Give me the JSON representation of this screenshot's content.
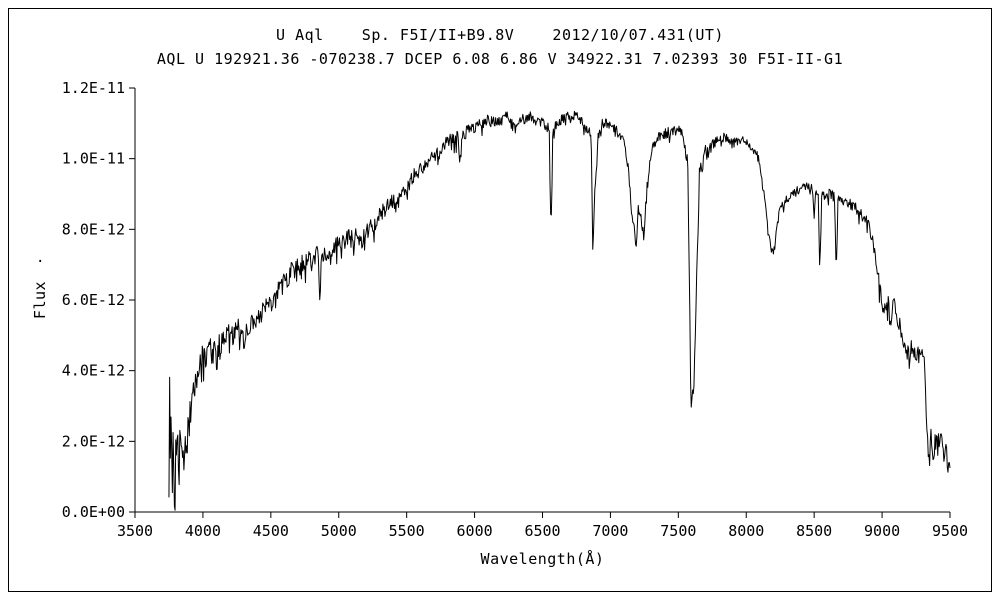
{
  "chart_data": {
    "type": "line",
    "title": "U Aql    Sp. F5I/II+B9.8V    2012/10/07.431(UT)",
    "subtitle": "AQL U 192921.36 -070238.7 DCEP 6.08 6.86 V 34922.31 7.02393 30 F5I-II-G1",
    "xlabel": "Wavelength(Å)",
    "ylabel": "Flux",
    "ylabel_dot": ".",
    "x_unit": "Å",
    "xlim": [
      3500,
      9500
    ],
    "ylim": [
      0,
      1.2e-11
    ],
    "grid": false,
    "legend": "none",
    "line_color": "#000000",
    "background_color": "#ffffff",
    "x_tick_values": [
      3500,
      4000,
      4500,
      5000,
      5500,
      6000,
      6500,
      7000,
      7500,
      8000,
      8500,
      9000,
      9500
    ],
    "x_tick_labels": [
      "3500",
      "4000",
      "4500",
      "5000",
      "5500",
      "6000",
      "6500",
      "7000",
      "7500",
      "8000",
      "8500",
      "9000",
      "9500"
    ],
    "y_tick_values_e12": [
      0,
      2,
      4,
      6,
      8,
      10,
      12
    ],
    "y_tick_labels": [
      "0.0E+00",
      "2.0E-12",
      "4.0E-12",
      "6.0E-12",
      "8.0E-12",
      "1.0E-11",
      "1.2E-11"
    ],
    "flux_scale": "1E-12",
    "series": [
      {
        "name": "spectrum",
        "points_wavelength_flux_e12": [
          [
            3750,
            1.2
          ],
          [
            3754,
            3.7
          ],
          [
            3759,
            0.8
          ],
          [
            3766,
            2.6
          ],
          [
            3773,
            1.0
          ],
          [
            3781,
            2.2
          ],
          [
            3789,
            0.6
          ],
          [
            3797,
            1.9
          ],
          [
            3806,
            1.3
          ],
          [
            3815,
            2.4
          ],
          [
            3824,
            1.1
          ],
          [
            3833,
            2.0
          ],
          [
            3843,
            1.5
          ],
          [
            3853,
            2.2
          ],
          [
            3863,
            1.6
          ],
          [
            3873,
            2.1
          ],
          [
            3883,
            1.8
          ],
          [
            3893,
            2.3
          ],
          [
            3903,
            2.6
          ],
          [
            3913,
            3.0
          ],
          [
            3925,
            3.5
          ],
          [
            3933,
            3.0
          ],
          [
            3941,
            3.8
          ],
          [
            3960,
            4.2
          ],
          [
            3968,
            3.7
          ],
          [
            3976,
            4.3
          ],
          [
            4000,
            4.5
          ],
          [
            4025,
            4.4
          ],
          [
            4050,
            4.6
          ],
          [
            4075,
            4.5
          ],
          [
            4090,
            4.5
          ],
          [
            4101,
            4.0
          ],
          [
            4112,
            4.7
          ],
          [
            4140,
            4.8
          ],
          [
            4170,
            4.9
          ],
          [
            4200,
            5.1
          ],
          [
            4230,
            5.0
          ],
          [
            4260,
            5.2
          ],
          [
            4285,
            5.1
          ],
          [
            4308,
            4.8
          ],
          [
            4320,
            5.2
          ],
          [
            4330,
            5.3
          ],
          [
            4340,
            4.9
          ],
          [
            4352,
            5.4
          ],
          [
            4390,
            5.5
          ],
          [
            4430,
            5.6
          ],
          [
            4470,
            5.8
          ],
          [
            4510,
            6.0
          ],
          [
            4550,
            6.3
          ],
          [
            4600,
            6.5
          ],
          [
            4650,
            6.8
          ],
          [
            4700,
            6.9
          ],
          [
            4750,
            7.1
          ],
          [
            4800,
            7.2
          ],
          [
            4830,
            7.3
          ],
          [
            4850,
            7.25
          ],
          [
            4861,
            5.9
          ],
          [
            4872,
            7.3
          ],
          [
            4920,
            7.4
          ],
          [
            4960,
            7.5
          ],
          [
            5000,
            7.6
          ],
          [
            5050,
            7.7
          ],
          [
            5100,
            7.8
          ],
          [
            5140,
            7.9
          ],
          [
            5160,
            7.7
          ],
          [
            5172,
            7.5
          ],
          [
            5185,
            7.9
          ],
          [
            5220,
            8.0
          ],
          [
            5260,
            8.2
          ],
          [
            5300,
            8.4
          ],
          [
            5350,
            8.6
          ],
          [
            5400,
            8.8
          ],
          [
            5450,
            9.0
          ],
          [
            5500,
            9.2
          ],
          [
            5550,
            9.5
          ],
          [
            5600,
            9.7
          ],
          [
            5650,
            9.9
          ],
          [
            5700,
            10.1
          ],
          [
            5750,
            10.3
          ],
          [
            5800,
            10.5
          ],
          [
            5840,
            10.6
          ],
          [
            5878,
            10.6
          ],
          [
            5890,
            10.0
          ],
          [
            5904,
            10.65
          ],
          [
            5960,
            10.8
          ],
          [
            6000,
            10.9
          ],
          [
            6050,
            11.0
          ],
          [
            6100,
            11.1
          ],
          [
            6150,
            11.0
          ],
          [
            6200,
            11.1
          ],
          [
            6250,
            11.2
          ],
          [
            6280,
            10.9
          ],
          [
            6310,
            11.0
          ],
          [
            6350,
            11.1
          ],
          [
            6400,
            11.2
          ],
          [
            6450,
            11.1
          ],
          [
            6500,
            11.0
          ],
          [
            6530,
            10.9
          ],
          [
            6550,
            10.85
          ],
          [
            6563,
            7.8
          ],
          [
            6576,
            10.85
          ],
          [
            6640,
            11.1
          ],
          [
            6690,
            11.2
          ],
          [
            6740,
            11.2
          ],
          [
            6790,
            11.1
          ],
          [
            6830,
            10.8
          ],
          [
            6858,
            10.7
          ],
          [
            6870,
            7.4
          ],
          [
            6884,
            9.0
          ],
          [
            6910,
            10.6
          ],
          [
            6940,
            11.0
          ],
          [
            6970,
            11.0
          ],
          [
            7000,
            10.9
          ],
          [
            7050,
            10.8
          ],
          [
            7090,
            10.6
          ],
          [
            7130,
            9.8
          ],
          [
            7160,
            8.3
          ],
          [
            7178,
            8.0
          ],
          [
            7190,
            7.5
          ],
          [
            7205,
            8.6
          ],
          [
            7230,
            8.2
          ],
          [
            7245,
            7.8
          ],
          [
            7275,
            9.5
          ],
          [
            7310,
            10.3
          ],
          [
            7350,
            10.6
          ],
          [
            7400,
            10.7
          ],
          [
            7450,
            10.8
          ],
          [
            7500,
            10.8
          ],
          [
            7540,
            10.6
          ],
          [
            7570,
            9.8
          ],
          [
            7594,
            3.1
          ],
          [
            7615,
            3.6
          ],
          [
            7632,
            6.2
          ],
          [
            7655,
            9.5
          ],
          [
            7690,
            10.1
          ],
          [
            7730,
            10.3
          ],
          [
            7770,
            10.4
          ],
          [
            7810,
            10.5
          ],
          [
            7850,
            10.6
          ],
          [
            7890,
            10.4
          ],
          [
            7930,
            10.5
          ],
          [
            7970,
            10.6
          ],
          [
            8010,
            10.4
          ],
          [
            8050,
            10.3
          ],
          [
            8090,
            10.0
          ],
          [
            8130,
            9.0
          ],
          [
            8165,
            7.8
          ],
          [
            8195,
            7.3
          ],
          [
            8225,
            8.1
          ],
          [
            8260,
            8.7
          ],
          [
            8300,
            8.9
          ],
          [
            8350,
            9.0
          ],
          [
            8400,
            9.2
          ],
          [
            8440,
            9.35
          ],
          [
            8470,
            9.2
          ],
          [
            8486,
            9.1
          ],
          [
            8498,
            8.4
          ],
          [
            8510,
            9.1
          ],
          [
            8530,
            9.05
          ],
          [
            8542,
            6.9
          ],
          [
            8556,
            9.0
          ],
          [
            8610,
            9.0
          ],
          [
            8650,
            8.9
          ],
          [
            8662,
            6.8
          ],
          [
            8676,
            8.9
          ],
          [
            8720,
            8.8
          ],
          [
            8760,
            8.7
          ],
          [
            8800,
            8.6
          ],
          [
            8850,
            8.4
          ],
          [
            8890,
            8.2
          ],
          [
            8930,
            7.8
          ],
          [
            8960,
            7.0
          ],
          [
            8990,
            6.2
          ],
          [
            9015,
            5.6
          ],
          [
            9040,
            6.1
          ],
          [
            9060,
            5.3
          ],
          [
            9085,
            5.9
          ],
          [
            9110,
            5.5
          ],
          [
            9140,
            5.2
          ],
          [
            9170,
            4.8
          ],
          [
            9200,
            4.6
          ],
          [
            9240,
            4.5
          ],
          [
            9280,
            4.5
          ],
          [
            9310,
            4.2
          ],
          [
            9330,
            2.4
          ],
          [
            9345,
            1.6
          ],
          [
            9360,
            2.2
          ],
          [
            9375,
            1.5
          ],
          [
            9390,
            2.1
          ],
          [
            9410,
            1.9
          ],
          [
            9430,
            2.3
          ],
          [
            9450,
            1.6
          ],
          [
            9470,
            2.0
          ],
          [
            9485,
            1.3
          ],
          [
            9500,
            1.5
          ]
        ]
      }
    ],
    "noise": {
      "seed": 20121007,
      "step_angstrom": 5,
      "amplitude_profile_e12": [
        [
          3750,
          0.85
        ],
        [
          3900,
          0.55
        ],
        [
          3980,
          0.35
        ],
        [
          4400,
          0.3
        ],
        [
          5000,
          0.25
        ],
        [
          5600,
          0.2
        ],
        [
          6000,
          0.17
        ],
        [
          6500,
          0.15
        ],
        [
          7000,
          0.13
        ],
        [
          7500,
          0.15
        ],
        [
          7650,
          0.25
        ],
        [
          8000,
          0.13
        ],
        [
          8600,
          0.15
        ],
        [
          8950,
          0.2
        ],
        [
          9050,
          0.3
        ],
        [
          9300,
          0.3
        ],
        [
          9500,
          0.3
        ]
      ]
    }
  }
}
